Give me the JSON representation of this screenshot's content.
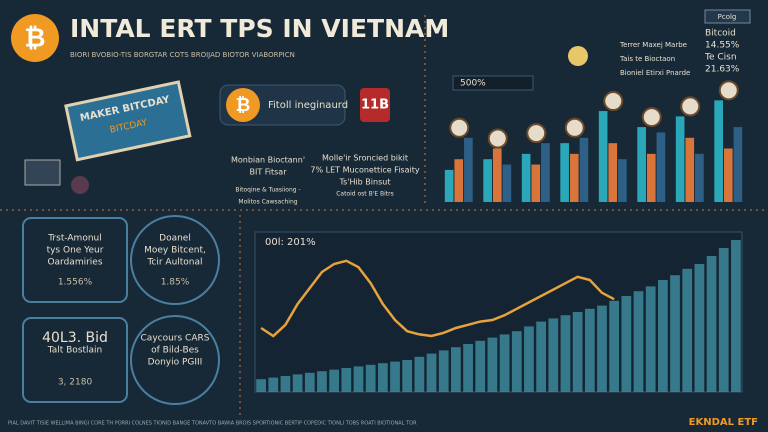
{
  "header": {
    "title": "INTAL ERT TPS IN VIETNAM",
    "subtitle": "BIORI BVOBIO-TIS BORGTAR COTS BROIJAD BIOTOR VIABORPICN"
  },
  "left_panel": {
    "sign": "MAKER BITCDAY",
    "sub": "BITCDAY"
  },
  "middle_panel": {
    "badge_label": "Fitoll ineginaurd",
    "badge_code": "11B",
    "left_text": [
      "Monbian Bioctann'",
      "BIT Fitsar",
      "Bitoqine & Tuasiiong -",
      "Molitos Cawsaching"
    ],
    "right_text": [
      "Molle'ir Sroncied bikit",
      "7% LET Muconettice Fisaity",
      "Ts'Hib Binsut",
      "Catoid ost B'E Bitrs"
    ]
  },
  "top_right": {
    "tag": "Pcolg",
    "labels": [
      "Terrer Maxej Marbe",
      "Tais te Bioctaon",
      "Bioniel Etirxi Pnarde"
    ],
    "legend": [
      "Bitcoid",
      "14.55%",
      "Te Cisn",
      "21.63%"
    ],
    "level": "500%"
  },
  "stats": [
    {
      "lines": [
        "Trst-Amonul",
        "tys One Yeur",
        "Oardamiries"
      ],
      "value": "1.556%"
    },
    {
      "lines": [
        "Doanel",
        "Moey Bitcent,",
        "Tcir Aultonal"
      ],
      "value": "1.85%"
    },
    {
      "lines": [
        "40L3. Bid",
        "Talt Bostlain"
      ],
      "value": "3, 2180"
    },
    {
      "lines": [
        "Caycours CARS",
        "of Bild-Bes",
        "Donyio PGIII"
      ],
      "value": null
    }
  ],
  "footer": {
    "text": "PIAL DAVIT TISIE WELLIMA BINGI CORE TH PORRI COLNES TIONID BANGE TONAVTO BAWIA BROIS SPORTIONIC BERTIP COPEDIC TIONLI TOBS ROATI BIOTIONAL TOR",
    "brand": "EKNDAL ETF"
  },
  "chart_data": [
    {
      "type": "bar",
      "categories": [
        null,
        null,
        null,
        null,
        null,
        null,
        null,
        null
      ],
      "ylim": [
        0,
        100
      ],
      "series": [
        {
          "name": null,
          "color": "#2aa7b8",
          "values": [
            30,
            40,
            45,
            55,
            85,
            70,
            80,
            95
          ]
        },
        {
          "name": null,
          "color": "#d9743a",
          "values": [
            40,
            50,
            35,
            45,
            55,
            45,
            60,
            50
          ]
        },
        {
          "name": null,
          "color": "#2e5f86",
          "values": [
            60,
            35,
            55,
            60,
            40,
            65,
            45,
            70
          ]
        }
      ]
    },
    {
      "type": "line",
      "title": "00l: 201%",
      "categories": [
        null,
        null,
        null,
        null,
        null,
        null,
        null,
        null,
        null,
        null,
        null,
        null,
        null,
        null,
        null,
        null,
        null,
        null,
        null,
        null,
        null,
        null,
        null,
        null,
        null,
        null,
        null,
        null,
        null,
        null,
        null,
        null,
        null,
        null,
        null,
        null,
        null,
        null,
        null,
        null
      ],
      "ylim": [
        0,
        100
      ],
      "series": [
        {
          "name": null,
          "color": "#3e8ea0",
          "values": [
            8,
            9,
            10,
            11,
            12,
            13,
            14,
            15,
            16,
            17,
            18,
            19,
            20,
            22,
            24,
            26,
            28,
            30,
            32,
            34,
            36,
            38,
            41,
            44,
            46,
            48,
            50,
            52,
            54,
            57,
            60,
            63,
            66,
            70,
            73,
            77,
            80,
            85,
            90,
            95
          ]
        },
        {
          "name": null,
          "color": "#e6a23c",
          "values": [
            40,
            35,
            42,
            55,
            65,
            75,
            80,
            82,
            78,
            68,
            55,
            45,
            38,
            36,
            35,
            37,
            40,
            42,
            44,
            45,
            48,
            52,
            56,
            60,
            64,
            68,
            72,
            70,
            62,
            58,
            null,
            null,
            null,
            null,
            null,
            null,
            null,
            null,
            null,
            null
          ]
        }
      ]
    }
  ]
}
